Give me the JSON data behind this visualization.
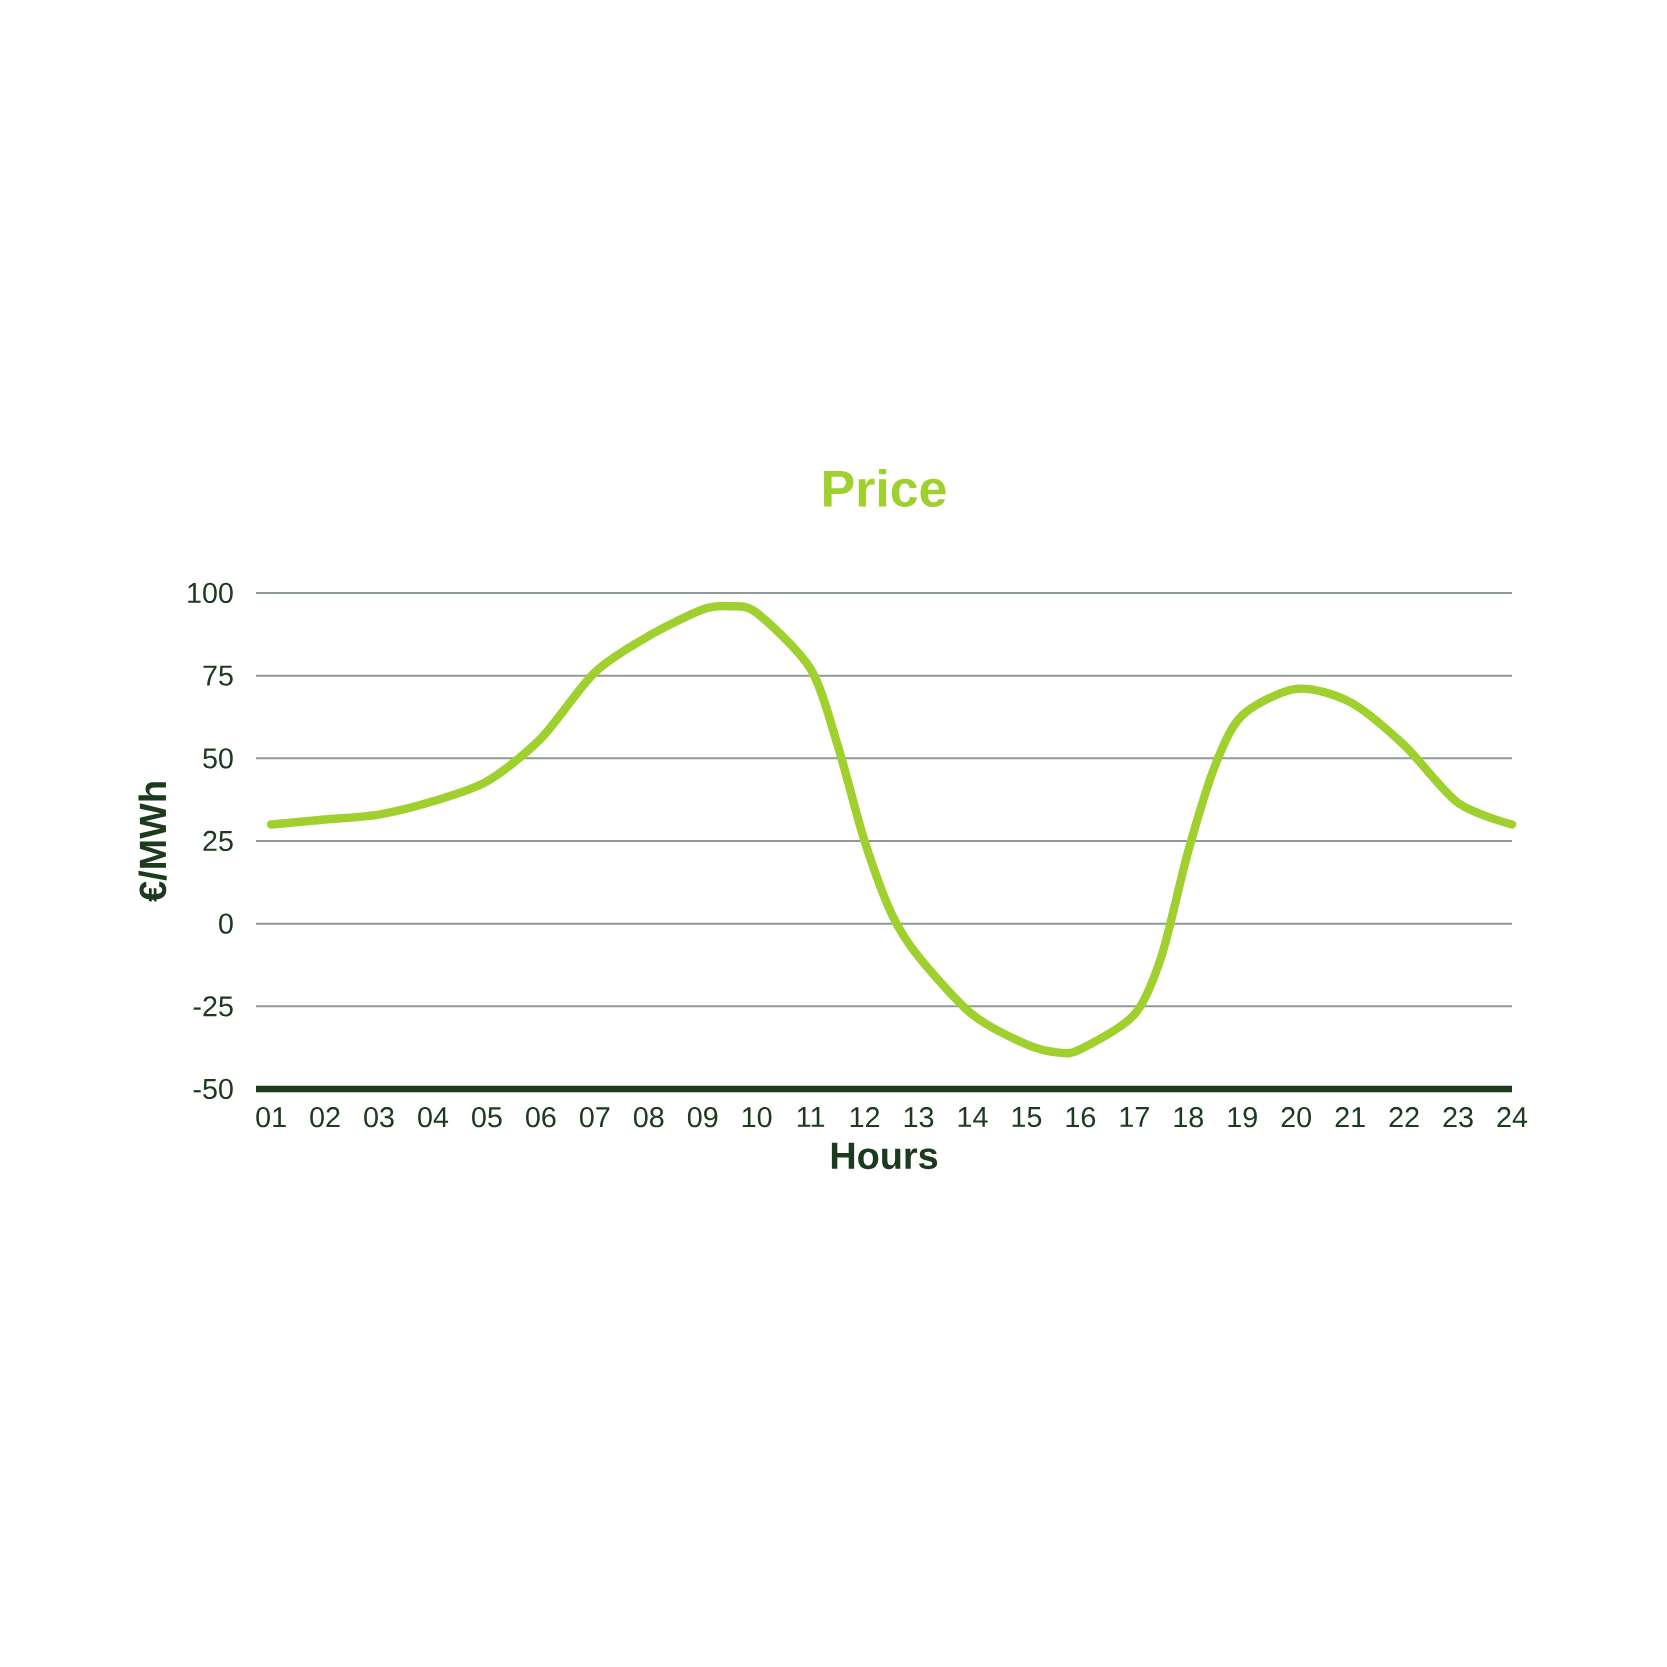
{
  "chart_data": {
    "type": "line",
    "title": "Price",
    "xlabel": "Hours",
    "ylabel": "€/MWh",
    "x": [
      1,
      2,
      3,
      4,
      5,
      6,
      7,
      8,
      9,
      9.5,
      10,
      11,
      11.5,
      12,
      12.5,
      13,
      14,
      15,
      15.6,
      16,
      17,
      17.5,
      18,
      18.5,
      19,
      20,
      21,
      22,
      23,
      24
    ],
    "series": [
      {
        "color": "#9fd02e",
        "values": [
          30,
          31.5,
          33,
          37,
          43,
          56,
          76,
          87,
          95,
          96,
          94,
          77,
          54,
          25,
          3,
          -10,
          -27.5,
          -36.5,
          -39,
          -38,
          -27.5,
          -10,
          22,
          48,
          63,
          71,
          67,
          54,
          36.5,
          30
        ]
      }
    ],
    "xlim": [
      0.72,
      24
    ],
    "ylim": [
      -50,
      100
    ],
    "xticks": [
      {
        "value": 1,
        "label": "01"
      },
      {
        "value": 2,
        "label": "02"
      },
      {
        "value": 3,
        "label": "03"
      },
      {
        "value": 4,
        "label": "04"
      },
      {
        "value": 5,
        "label": "05"
      },
      {
        "value": 6,
        "label": "06"
      },
      {
        "value": 7,
        "label": "07"
      },
      {
        "value": 8,
        "label": "08"
      },
      {
        "value": 9,
        "label": "09"
      },
      {
        "value": 10,
        "label": "10"
      },
      {
        "value": 11,
        "label": "11"
      },
      {
        "value": 12,
        "label": "12"
      },
      {
        "value": 13,
        "label": "13"
      },
      {
        "value": 14,
        "label": "14"
      },
      {
        "value": 15,
        "label": "15"
      },
      {
        "value": 16,
        "label": "16"
      },
      {
        "value": 17,
        "label": "17"
      },
      {
        "value": 18,
        "label": "18"
      },
      {
        "value": 19,
        "label": "19"
      },
      {
        "value": 20,
        "label": "20"
      },
      {
        "value": 21,
        "label": "21"
      },
      {
        "value": 22,
        "label": "22"
      },
      {
        "value": 23,
        "label": "23"
      },
      {
        "value": 24,
        "label": "24"
      }
    ],
    "yticks": [
      -50,
      -25,
      0,
      25,
      50,
      75,
      100
    ],
    "grid": "y",
    "line_style": "solid"
  }
}
